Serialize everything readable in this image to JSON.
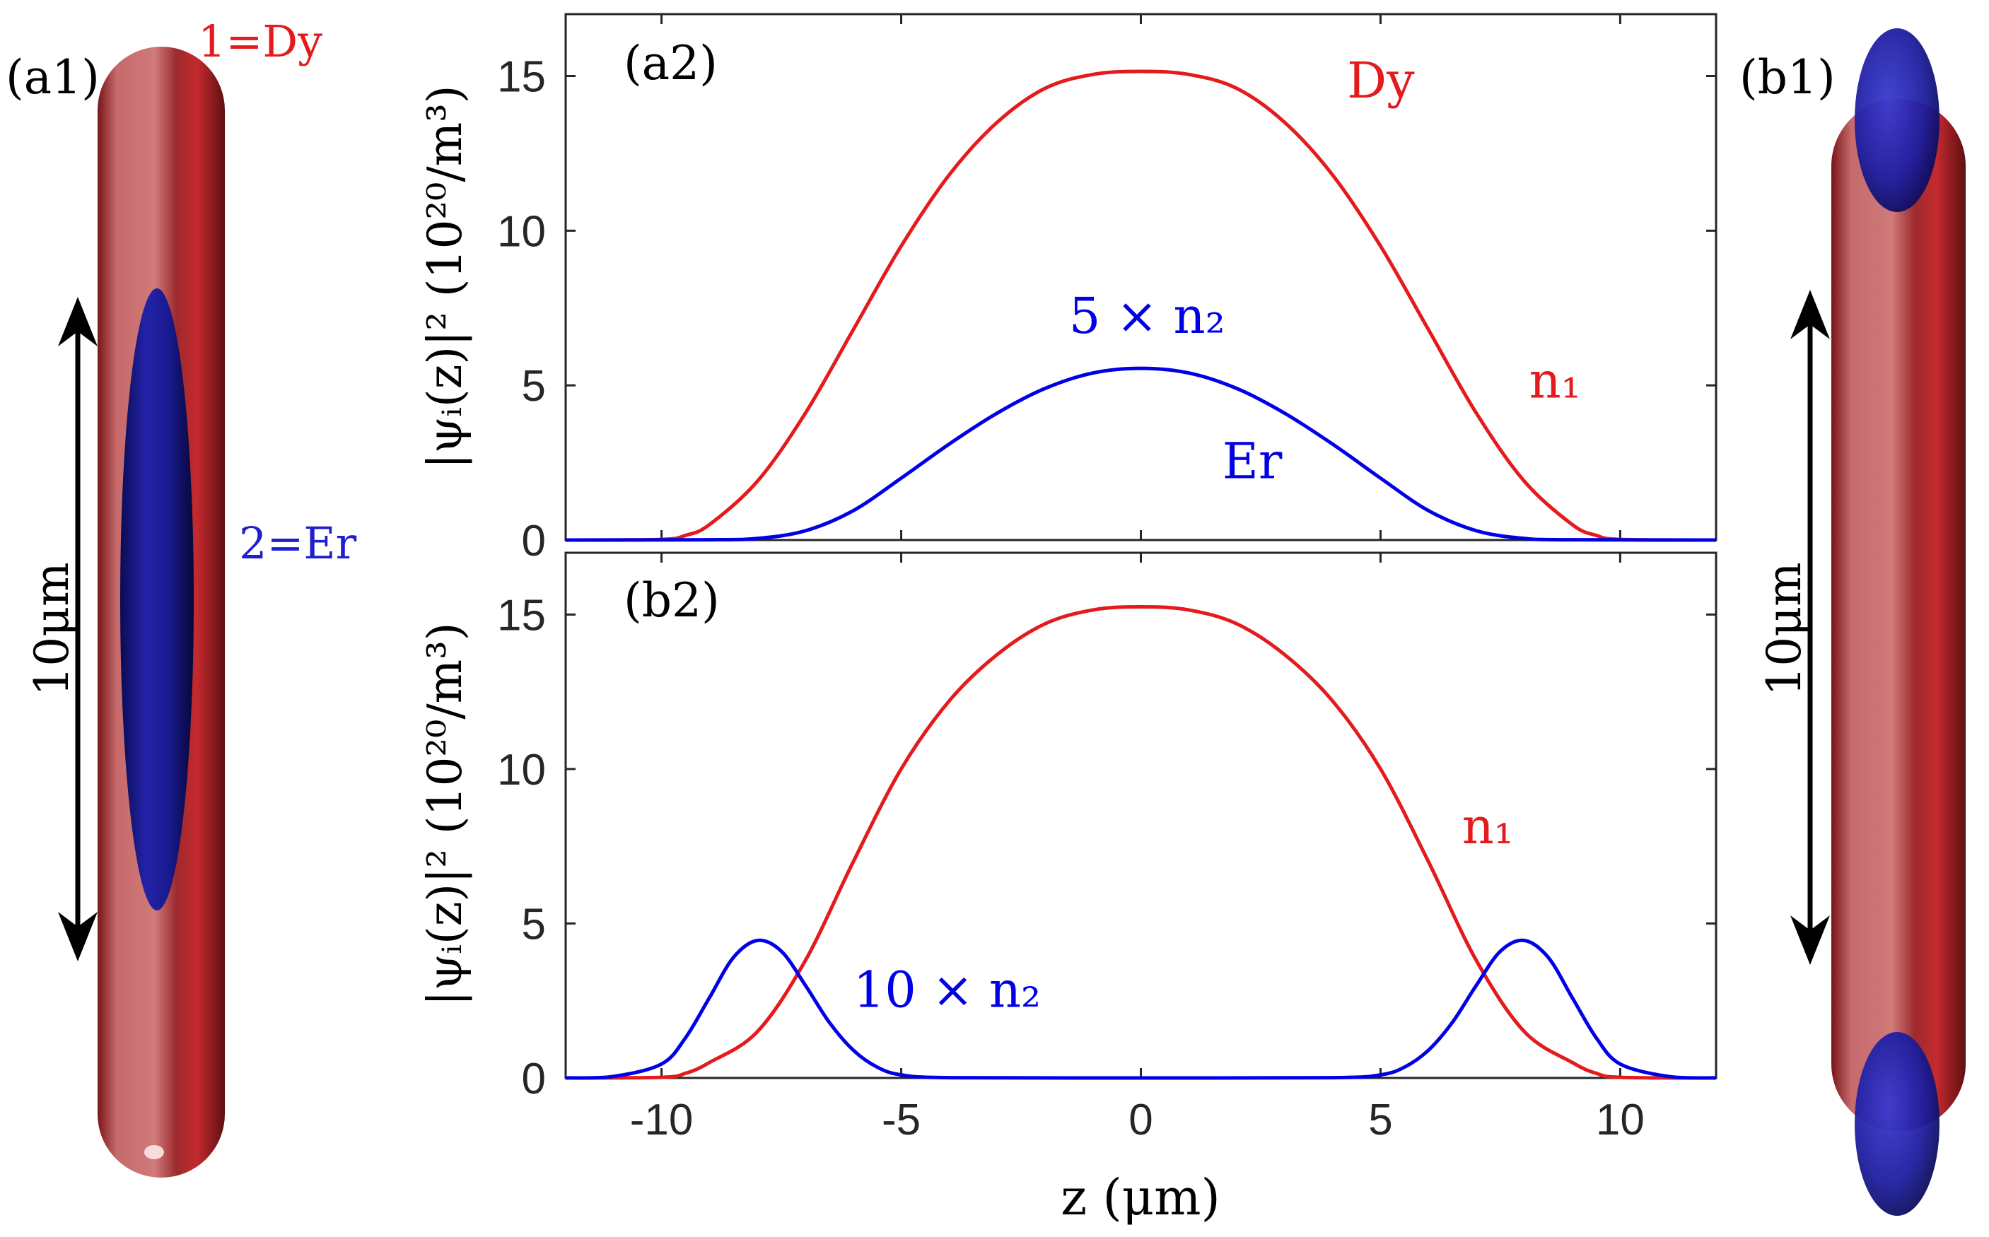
{
  "figure": {
    "panel_a1": {
      "label": "(a1)",
      "species1_label": "1=Dy",
      "species2_label": "2=Er",
      "scale_label": "10μm",
      "colors": {
        "dy": "#c0282c",
        "er": "#1a1aa8"
      }
    },
    "panel_b1": {
      "label": "(b1)",
      "scale_label": "10μm"
    },
    "xlabel": "z    (μm)",
    "ylabel": "|ψᵢ(z)|²   (10²⁰/m³)"
  },
  "chart_data": [
    {
      "type": "line",
      "panel": "(a2)",
      "xlim": [
        -12,
        12
      ],
      "ylim": [
        0,
        17
      ],
      "xticks": [
        -10,
        -5,
        0,
        5,
        10
      ],
      "yticks": [
        0,
        5,
        10,
        15
      ],
      "xticklabels": [
        "-10",
        "-5",
        "0",
        "5",
        "10"
      ],
      "yticklabels": [
        "0",
        "5",
        "10",
        "15"
      ],
      "xlabel": "z    (μm)",
      "ylabel": "|ψᵢ(z)|²   (10²⁰/m³)",
      "series": [
        {
          "name": "n1 (Dy)",
          "color": "#e41a1c",
          "x": [
            -12,
            -10,
            -9.5,
            -9,
            -8,
            -7,
            -6,
            -5,
            -4,
            -3,
            -2,
            -1,
            0,
            1,
            2,
            3,
            4,
            5,
            6,
            7,
            8,
            9,
            9.5,
            10,
            12
          ],
          "y": [
            0,
            0.02,
            0.15,
            0.5,
            1.9,
            4.1,
            6.8,
            9.5,
            11.8,
            13.5,
            14.6,
            15.05,
            15.15,
            15.05,
            14.6,
            13.5,
            11.8,
            9.5,
            6.8,
            4.1,
            1.9,
            0.5,
            0.15,
            0.02,
            0
          ]
        },
        {
          "name": "5 × n2 (Er)",
          "color": "#0000e6",
          "x": [
            -12,
            -9,
            -8,
            -7,
            -6,
            -5,
            -4,
            -3,
            -2,
            -1,
            0,
            1,
            2,
            3,
            4,
            5,
            6,
            7,
            8,
            9,
            12
          ],
          "y": [
            0,
            0.01,
            0.05,
            0.3,
            0.95,
            2.0,
            3.1,
            4.1,
            4.9,
            5.4,
            5.55,
            5.4,
            4.9,
            4.1,
            3.1,
            2.0,
            0.95,
            0.3,
            0.05,
            0.01,
            0
          ]
        }
      ],
      "annotations": [
        {
          "text": "Dy",
          "x": 4.3,
          "y": 14.3,
          "color": "#e41a1c"
        },
        {
          "text": "n₁",
          "x": 8.1,
          "y": 4.6,
          "color": "#e41a1c"
        },
        {
          "text": "5 × n₂",
          "x": -1.5,
          "y": 6.7,
          "color": "#0000e6"
        },
        {
          "text": "Er",
          "x": 1.7,
          "y": 2.0,
          "color": "#0000e6"
        }
      ]
    },
    {
      "type": "line",
      "panel": "(b2)",
      "xlim": [
        -12,
        12
      ],
      "ylim": [
        0,
        17
      ],
      "xticks": [
        -10,
        -5,
        0,
        5,
        10
      ],
      "yticks": [
        0,
        5,
        10,
        15
      ],
      "xticklabels": [
        "-10",
        "-5",
        "0",
        "5",
        "10"
      ],
      "yticklabels": [
        "0",
        "5",
        "10",
        "15"
      ],
      "xlabel": "z    (μm)",
      "ylabel": "|ψᵢ(z)|²   (10²⁰/m³)",
      "series": [
        {
          "name": "n1 (Dy)",
          "color": "#e41a1c",
          "x": [
            -12,
            -10,
            -9.5,
            -9,
            -8,
            -7,
            -6,
            -5,
            -4,
            -3,
            -2,
            -1,
            0,
            1,
            2,
            3,
            4,
            5,
            6,
            7,
            8,
            9,
            9.5,
            10,
            12
          ],
          "y": [
            0,
            0.02,
            0.15,
            0.5,
            1.5,
            3.8,
            7.0,
            10.0,
            12.2,
            13.7,
            14.7,
            15.15,
            15.25,
            15.15,
            14.7,
            13.7,
            12.2,
            10.0,
            7.0,
            3.8,
            1.5,
            0.5,
            0.15,
            0.02,
            0
          ]
        },
        {
          "name": "10 × n2 (Er)",
          "color": "#0000e6",
          "x": [
            -12,
            -11,
            -10,
            -9.5,
            -9,
            -8.5,
            -8,
            -7.5,
            -7,
            -6.5,
            -6,
            -5.5,
            -5,
            -4,
            0,
            4,
            5,
            5.5,
            6,
            6.5,
            7,
            7.5,
            8,
            8.5,
            9,
            9.5,
            10,
            11,
            12
          ],
          "y": [
            0,
            0.05,
            0.45,
            1.3,
            2.6,
            3.9,
            4.45,
            4.1,
            3.0,
            1.8,
            0.9,
            0.35,
            0.1,
            0.01,
            0,
            0.01,
            0.1,
            0.35,
            0.9,
            1.8,
            3.0,
            4.1,
            4.45,
            3.9,
            2.6,
            1.3,
            0.45,
            0.05,
            0
          ]
        }
      ],
      "annotations": [
        {
          "text": "n₁",
          "x": 6.7,
          "y": 7.6,
          "color": "#e41a1c"
        },
        {
          "text": "10 × n₂",
          "x": -6.0,
          "y": 2.3,
          "color": "#0000e6"
        }
      ]
    }
  ]
}
